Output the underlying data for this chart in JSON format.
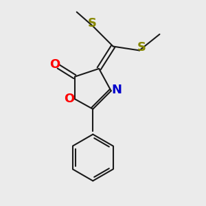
{
  "background_color": "#ebebeb",
  "bond_color": "#1a1a1a",
  "O_color": "#ff0000",
  "N_color": "#0000cc",
  "S_color": "#888800",
  "lw": 1.5,
  "figsize": [
    3.0,
    3.0
  ],
  "dpi": 100,
  "xlim": [
    0,
    10
  ],
  "ylim": [
    0,
    10
  ]
}
